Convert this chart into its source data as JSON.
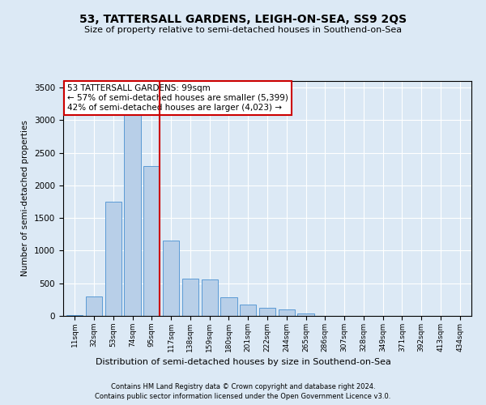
{
  "title": "53, TATTERSALL GARDENS, LEIGH-ON-SEA, SS9 2QS",
  "subtitle": "Size of property relative to semi-detached houses in Southend-on-Sea",
  "xlabel": "Distribution of semi-detached houses by size in Southend-on-Sea",
  "ylabel": "Number of semi-detached properties",
  "categories": [
    "11sqm",
    "32sqm",
    "53sqm",
    "74sqm",
    "95sqm",
    "117sqm",
    "138sqm",
    "159sqm",
    "180sqm",
    "201sqm",
    "222sqm",
    "244sqm",
    "265sqm",
    "286sqm",
    "307sqm",
    "328sqm",
    "349sqm",
    "371sqm",
    "392sqm",
    "413sqm",
    "434sqm"
  ],
  "values": [
    10,
    300,
    1750,
    3100,
    2300,
    1150,
    575,
    560,
    280,
    175,
    130,
    100,
    40,
    5,
    2,
    2,
    1,
    1,
    1,
    1,
    1
  ],
  "bar_color": "#b8cfe8",
  "bar_edge_color": "#5b9bd5",
  "vline_x": 4.42,
  "vline_color": "#cc0000",
  "annotation_title": "53 TATTERSALL GARDENS: 99sqm",
  "annotation_line1": "← 57% of semi-detached houses are smaller (5,399)",
  "annotation_line2": "42% of semi-detached houses are larger (4,023) →",
  "annotation_box_color": "#ffffff",
  "annotation_box_edge": "#cc0000",
  "background_color": "#dce9f5",
  "plot_background": "#dce9f5",
  "ylim": [
    0,
    3600
  ],
  "yticks": [
    0,
    500,
    1000,
    1500,
    2000,
    2500,
    3000,
    3500
  ],
  "footer1": "Contains HM Land Registry data © Crown copyright and database right 2024.",
  "footer2": "Contains public sector information licensed under the Open Government Licence v3.0."
}
